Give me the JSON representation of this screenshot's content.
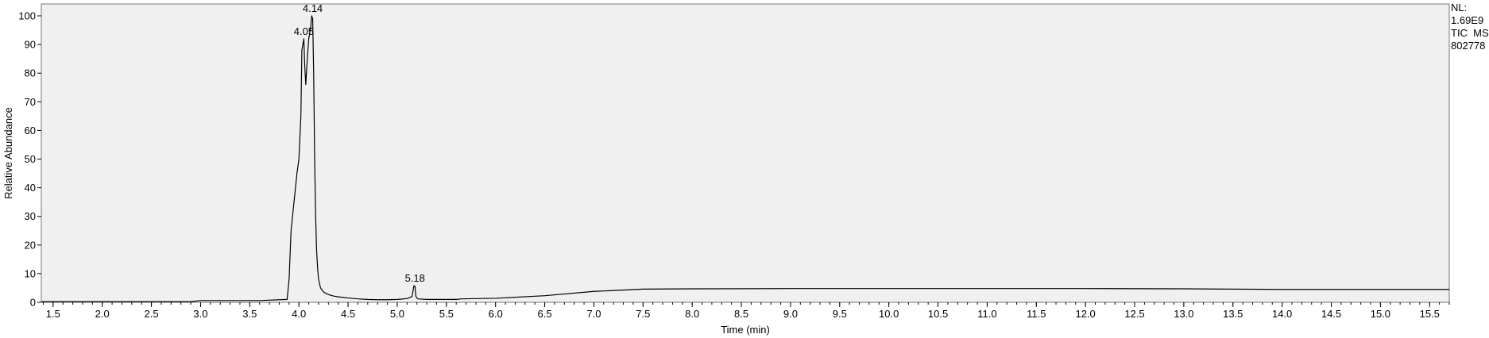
{
  "header": {
    "nl_label": "NL:",
    "nl_value": "1.69E9",
    "scan_filter": "TIC  MS",
    "sample_id": "802778"
  },
  "chart_data": {
    "type": "line",
    "title": "",
    "xlabel": "Time (min)",
    "ylabel": "Relative Abundance",
    "xlim": [
      1.38,
      15.7
    ],
    "ylim": [
      0,
      100
    ],
    "x_ticks": [
      1.5,
      2.0,
      2.5,
      3.0,
      3.5,
      4.0,
      4.5,
      5.0,
      5.5,
      6.0,
      6.5,
      7.0,
      7.5,
      8.0,
      8.5,
      9.0,
      9.5,
      10.0,
      10.5,
      11.0,
      11.5,
      12.0,
      12.5,
      13.0,
      13.5,
      14.0,
      14.5,
      15.0,
      15.5
    ],
    "x_tick_labels": [
      "1.5",
      "2.0",
      "2.5",
      "3.0",
      "3.5",
      "4.0",
      "4.5",
      "5.0",
      "5.5",
      "6.0",
      "6.5",
      "7.0",
      "7.5",
      "8.0",
      "8.5",
      "9.0",
      "9.5",
      "10.0",
      "10.5",
      "11.0",
      "11.5",
      "12.0",
      "12.5",
      "13.0",
      "13.5",
      "14.0",
      "14.5",
      "15.0",
      "15.5"
    ],
    "y_ticks": [
      0,
      10,
      20,
      30,
      40,
      50,
      60,
      70,
      80,
      90,
      100
    ],
    "y_tick_labels": [
      "0",
      "10",
      "20",
      "30",
      "40",
      "50",
      "60",
      "70",
      "80",
      "90",
      "100"
    ],
    "grid": false,
    "series": [
      {
        "color": "#000000",
        "x": [
          1.38,
          2.9,
          3.0,
          3.6,
          3.88,
          3.9,
          3.92,
          3.95,
          3.98,
          4.0,
          4.02,
          4.03,
          4.05,
          4.06,
          4.07,
          4.085,
          4.1,
          4.12,
          4.13,
          4.14,
          4.15,
          4.16,
          4.17,
          4.18,
          4.19,
          4.2,
          4.22,
          4.25,
          4.3,
          4.35,
          4.4,
          4.45,
          4.5,
          4.6,
          4.7,
          4.8,
          4.9,
          5.0,
          5.1,
          5.15,
          5.17,
          5.18,
          5.19,
          5.21,
          5.3,
          5.6,
          5.65,
          6.0,
          6.5,
          7.0,
          7.5,
          8.0,
          9.0,
          10.0,
          11.0,
          12.0,
          13.0,
          14.0,
          15.0,
          15.7
        ],
        "y": [
          0.2,
          0.2,
          0.6,
          0.6,
          1.0,
          8,
          25,
          35,
          45,
          50,
          65,
          88,
          92,
          82,
          76,
          85,
          92,
          96,
          100,
          99,
          80,
          50,
          30,
          18,
          12,
          8,
          5,
          3.6,
          2.7,
          2.2,
          1.9,
          1.7,
          1.5,
          1.2,
          1.0,
          0.9,
          0.9,
          1.0,
          1.3,
          2.0,
          5.8,
          5.6,
          2.0,
          1.2,
          1.0,
          1.0,
          1.2,
          1.4,
          2.3,
          3.8,
          4.6,
          4.7,
          4.8,
          4.8,
          4.8,
          4.8,
          4.7,
          4.5,
          4.5,
          4.5
        ]
      }
    ],
    "peak_labels": [
      {
        "x": 4.05,
        "y": 92,
        "text": "4.05"
      },
      {
        "x": 4.14,
        "y": 100,
        "text": "4.14"
      },
      {
        "x": 5.18,
        "y": 5.8,
        "text": "5.18"
      }
    ]
  }
}
